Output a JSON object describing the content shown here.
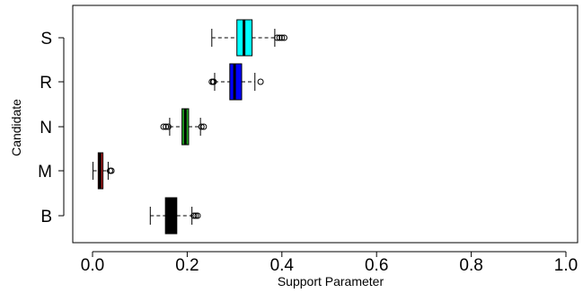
{
  "chart_data": {
    "type": "boxplot",
    "orientation": "horizontal",
    "xlabel": "Support Parameter",
    "ylabel": "Candidate",
    "xlim": [
      0.0,
      1.0
    ],
    "xticks": [
      0.0,
      0.2,
      0.4,
      0.6,
      0.8,
      1.0
    ],
    "xtick_labels": [
      "0.0",
      "0.2",
      "0.4",
      "0.6",
      "0.8",
      "1.0"
    ],
    "grid": false,
    "series": [
      {
        "label": "S",
        "color": "#00ffff",
        "whisker_low": 0.252,
        "q1": 0.305,
        "median": 0.32,
        "q3": 0.337,
        "whisker_high": 0.385,
        "outliers": [
          0.39,
          0.395,
          0.4,
          0.405
        ]
      },
      {
        "label": "R",
        "color": "#0000ff",
        "whisker_low": 0.258,
        "q1": 0.29,
        "median": 0.3,
        "q3": 0.315,
        "whisker_high": 0.343,
        "outliers": [
          0.252,
          0.255,
          0.256,
          0.355
        ]
      },
      {
        "label": "N",
        "color": "#22aa22",
        "whisker_low": 0.163,
        "q1": 0.189,
        "median": 0.196,
        "q3": 0.203,
        "whisker_high": 0.228,
        "outliers": [
          0.15,
          0.155,
          0.16,
          0.23,
          0.235
        ]
      },
      {
        "label": "M",
        "color": "#cc2222",
        "whisker_low": 0.001,
        "q1": 0.012,
        "median": 0.016,
        "q3": 0.022,
        "whisker_high": 0.033,
        "outliers": [
          0.037,
          0.04
        ]
      },
      {
        "label": "B",
        "color": "#000000",
        "whisker_low": 0.122,
        "q1": 0.154,
        "median": 0.162,
        "q3": 0.178,
        "whisker_high": 0.21,
        "outliers": [
          0.214,
          0.218,
          0.222
        ]
      }
    ]
  }
}
